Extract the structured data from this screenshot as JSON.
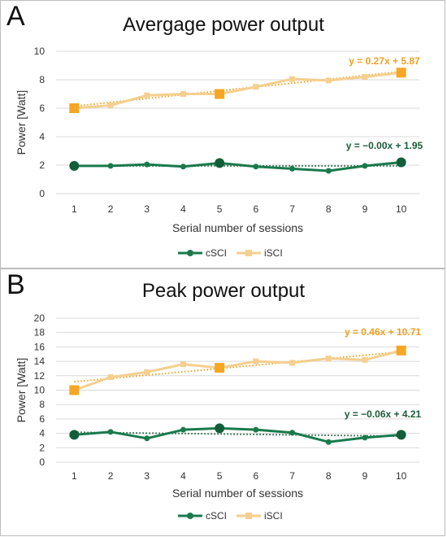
{
  "chart_data": [
    {
      "type": "line",
      "panel_label": "A",
      "title": "Avergage power output",
      "xlabel": "Serial number of sessions",
      "ylabel": "Power [Watt]",
      "x": [
        1,
        2,
        3,
        4,
        5,
        6,
        7,
        8,
        9,
        10
      ],
      "ylim": [
        0,
        10
      ],
      "yticks": [
        0,
        2,
        4,
        6,
        8,
        10
      ],
      "grid": true,
      "legend": "bottom",
      "series": [
        {
          "name": "cSCI",
          "color": "#1a7a4c",
          "marker": "circle",
          "values": [
            1.95,
            1.95,
            2.05,
            1.9,
            2.15,
            1.9,
            1.75,
            1.6,
            1.95,
            2.2
          ],
          "trendline": {
            "slope": -0.0,
            "intercept": 1.95,
            "label": "y = −0.00x + 1.95",
            "color": "#1a5c3a"
          }
        },
        {
          "name": "iSCI",
          "color": "#f5cf8f",
          "marker": "square",
          "values": [
            6.0,
            6.2,
            6.9,
            7.0,
            7.0,
            7.5,
            8.05,
            7.95,
            8.2,
            8.5
          ],
          "trendline": {
            "slope": 0.27,
            "intercept": 5.87,
            "label": "y = 0.27x + 5.87",
            "color": "#f0a020"
          }
        }
      ]
    },
    {
      "type": "line",
      "panel_label": "B",
      "title": "Peak power output",
      "xlabel": "Serial number of sessions",
      "ylabel": "Power [Watt]",
      "x": [
        1,
        2,
        3,
        4,
        5,
        6,
        7,
        8,
        9,
        10
      ],
      "ylim": [
        0,
        20
      ],
      "yticks": [
        0,
        2,
        4,
        6,
        8,
        10,
        12,
        14,
        16,
        18,
        20
      ],
      "grid": true,
      "legend": "bottom",
      "series": [
        {
          "name": "cSCI",
          "color": "#1a7a4c",
          "marker": "circle",
          "values": [
            3.8,
            4.2,
            3.3,
            4.5,
            4.7,
            4.5,
            4.1,
            2.8,
            3.4,
            3.8
          ],
          "trendline": {
            "slope": -0.06,
            "intercept": 4.21,
            "label": "y = −0.06x + 4.21",
            "color": "#1a5c3a"
          }
        },
        {
          "name": "iSCI",
          "color": "#f5cf8f",
          "marker": "square",
          "values": [
            10.0,
            11.8,
            12.5,
            13.6,
            13.1,
            14.0,
            13.8,
            14.4,
            14.2,
            15.5
          ],
          "trendline": {
            "slope": 0.46,
            "intercept": 10.71,
            "label": "y = 0.46x + 10.71",
            "color": "#f0a020"
          }
        }
      ]
    }
  ]
}
